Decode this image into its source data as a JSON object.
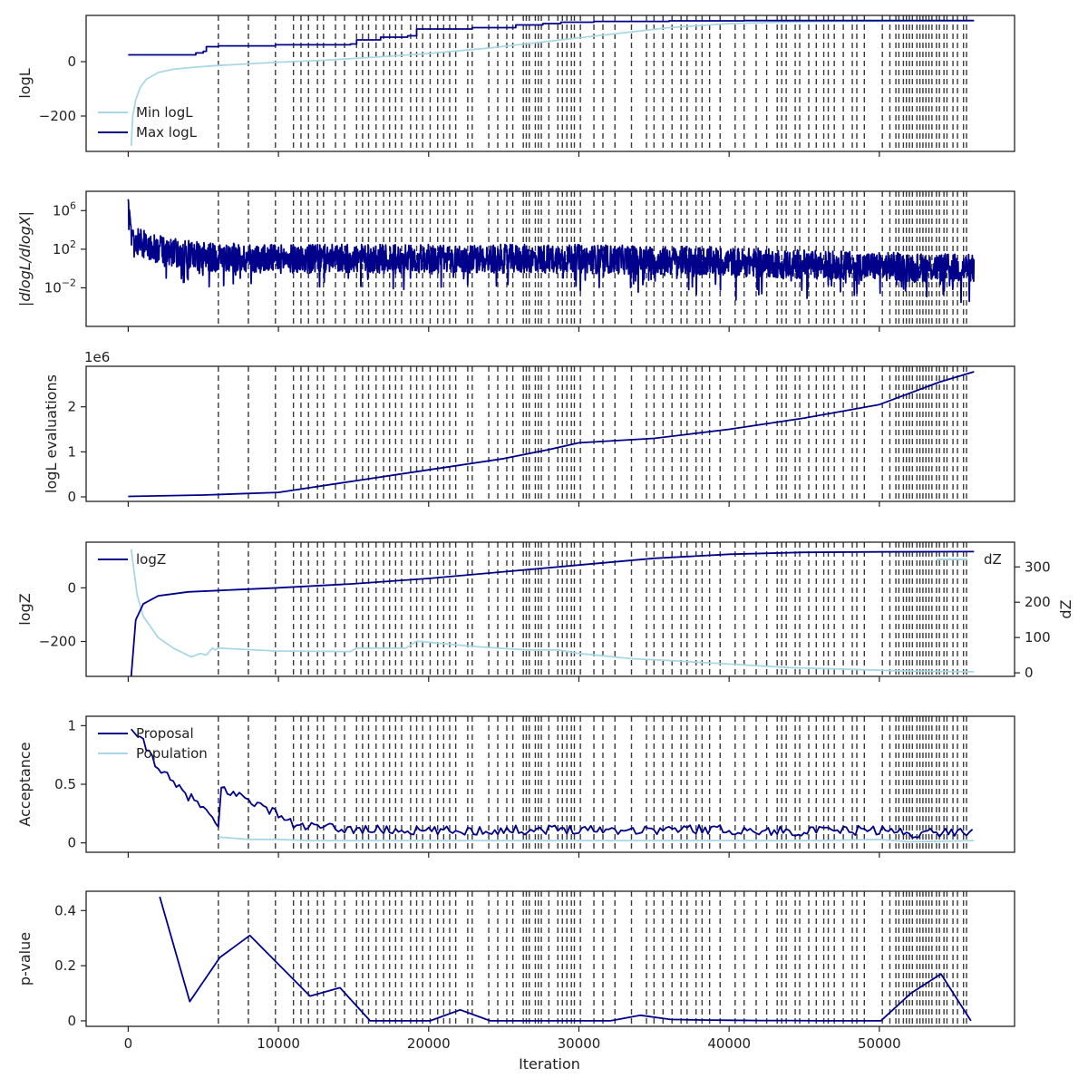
{
  "colors": {
    "navy": "#00008b",
    "light": "#a8d8e6",
    "axis": "#222222",
    "vline": "#3a3a3a"
  },
  "xaxis": {
    "label": "Iteration",
    "range": [
      -2800,
      59000
    ],
    "ticks": [
      0,
      10000,
      20000,
      30000,
      40000,
      50000
    ]
  },
  "chart_data": {
    "type": "line",
    "shared_vlines": [
      6000,
      8000,
      9800,
      11000,
      11500,
      12000,
      12600,
      13000,
      13800,
      14400,
      15200,
      15600,
      16000,
      16500,
      17000,
      17400,
      17800,
      18200,
      18800,
      19200,
      19600,
      20100,
      20600,
      21000,
      21400,
      21800,
      22600,
      22900,
      24000,
      24600,
      25200,
      25600,
      26300,
      26500,
      26700,
      27100,
      27300,
      27500,
      28000,
      28600,
      28900,
      29200,
      29500,
      29700,
      30100,
      31000,
      31600,
      32400,
      33500,
      34500,
      35000,
      35600,
      36200,
      36800,
      37200,
      37800,
      38200,
      38700,
      39400,
      40400,
      41000,
      41800,
      42500,
      43200,
      43500,
      43800,
      44400,
      44700,
      45300,
      45800,
      46300,
      46600,
      47000,
      47600,
      48200,
      48500,
      49000,
      50200,
      50700,
      51100,
      51300,
      51600,
      51800,
      52000,
      52200,
      52500,
      52700,
      52900,
      53100,
      53300,
      53500,
      53800,
      54000,
      54300,
      54500,
      54900,
      55200,
      55600,
      55800
    ],
    "panels": [
      {
        "id": "logl",
        "ylabel": "logL",
        "ylim": [
          -330,
          170
        ],
        "yticks": [
          0,
          -200
        ],
        "legend": "lower-left",
        "series": [
          {
            "name": "Min logL",
            "color": "#a8d8e6",
            "x": [
              200,
              300,
              500,
              800,
              1200,
              2000,
              3000,
              4500,
              6000,
              8000,
              10000,
              13000,
              16000,
              20000,
              24000,
              28000,
              32000,
              36000,
              40000,
              44000,
              48000,
              52000,
              56000
            ],
            "y": [
              -310,
              -200,
              -140,
              -95,
              -65,
              -40,
              -28,
              -20,
              -14,
              -8,
              -2,
              5,
              15,
              30,
              50,
              75,
              100,
              125,
              140,
              146,
              148,
              149,
              150
            ]
          },
          {
            "name": "Max logL",
            "color": "#00008b",
            "step": true,
            "x": [
              0,
              4200,
              4500,
              5000,
              5200,
              6000,
              9800,
              14800,
              15200,
              16800,
              18600,
              19200,
              22900,
              25800,
              27600,
              28800,
              31000,
              36000,
              41000,
              46000,
              56300
            ],
            "y": [
              25,
              25,
              32,
              38,
              55,
              58,
              62,
              65,
              80,
              90,
              95,
              120,
              125,
              135,
              140,
              145,
              148,
              150,
              151,
              151,
              151
            ]
          }
        ]
      },
      {
        "id": "dlogl",
        "ylabel": "|dlogL/dlogX|",
        "scale": "log",
        "ylim": [
          1e-06,
          100000000.0
        ],
        "yticks": [
          1000000,
          100,
          0.01
        ],
        "yticklabels": [
          "10^6",
          "10^2",
          "10^-2"
        ],
        "series": [
          {
            "name": "",
            "color": "#00008b",
            "noisy": true,
            "x": [
              0,
              100,
              200,
              600,
              1200,
              2500,
              5000,
              10000,
              20000,
              30000,
              40000,
              50000,
              56300
            ],
            "center_log10": [
              7,
              5.5,
              4,
              3,
              2.3,
              1.8,
              1.2,
              1.0,
              1.0,
              1.0,
              0.7,
              0.2,
              0
            ],
            "noise_log10": 1.5,
            "floor_log10": -4.8
          }
        ]
      },
      {
        "id": "evals",
        "ylabel": "logL evaluations",
        "offset_text": "1e6",
        "ylim": [
          -0.1,
          2.9
        ],
        "yticks": [
          0,
          1,
          2
        ],
        "series": [
          {
            "name": "",
            "color": "#00008b",
            "x": [
              0,
              5000,
              10000,
              15000,
              20000,
              25000,
              28000,
              30000,
              35000,
              40000,
              45000,
              50000,
              52000,
              54000,
              56300
            ],
            "y": [
              0.01,
              0.04,
              0.1,
              0.35,
              0.6,
              0.85,
              1.05,
              1.2,
              1.3,
              1.5,
              1.75,
              2.05,
              2.3,
              2.55,
              2.78
            ]
          }
        ]
      },
      {
        "id": "logz",
        "ylabel": "logZ",
        "ylim": [
          -330,
          170
        ],
        "yticks": [
          0,
          -200
        ],
        "legend": "upper-left",
        "series": [
          {
            "name": "logZ",
            "color": "#00008b",
            "x": [
              200,
              500,
              1000,
              2000,
              4000,
              6000,
              10000,
              15000,
              20000,
              25000,
              30000,
              35000,
              40000,
              45000,
              50000,
              56300
            ],
            "y": [
              -330,
              -120,
              -60,
              -30,
              -15,
              -10,
              0,
              15,
              35,
              60,
              85,
              110,
              125,
              132,
              134,
              135
            ]
          }
        ],
        "right_axis": {
          "ylabel": "dZ",
          "ylim": [
            -10,
            370
          ],
          "yticks": [
            0,
            100,
            200,
            300
          ],
          "legend": "upper-right",
          "series": [
            {
              "name": "dZ",
              "color": "#a8d8e6",
              "x": [
                200,
                600,
                1000,
                2000,
                3000,
                4200,
                4800,
                5200,
                5600,
                5800,
                6000,
                9800,
                14800,
                15200,
                18500,
                19200,
                22900,
                26500,
                28600,
                30000,
                33500,
                36000,
                40000,
                44000,
                48000,
                52000,
                56300
              ],
              "y": [
                350,
                220,
                160,
                100,
                70,
                45,
                55,
                50,
                70,
                65,
                70,
                62,
                60,
                70,
                70,
                90,
                75,
                65,
                65,
                55,
                40,
                35,
                25,
                15,
                10,
                5,
                3
              ]
            }
          ]
        }
      },
      {
        "id": "acceptance",
        "ylabel": "Acceptance",
        "ylim": [
          -0.08,
          1.08
        ],
        "yticks": [
          0.0,
          0.5,
          1.0
        ],
        "legend": "upper-left",
        "series": [
          {
            "name": "Proposal",
            "color": "#00008b",
            "wiggle": 0.04,
            "x": [
              200,
              1000,
              2000,
              3000,
              4000,
              5000,
              5800,
              6000,
              6100,
              7000,
              8000,
              9000,
              10000,
              11000,
              14000,
              20000,
              26000,
              30000,
              34000,
              38000,
              42000,
              46000,
              50000,
              52000,
              56300
            ],
            "y": [
              0.97,
              0.85,
              0.65,
              0.5,
              0.4,
              0.3,
              0.15,
              0.14,
              0.47,
              0.42,
              0.38,
              0.3,
              0.25,
              0.15,
              0.12,
              0.1,
              0.11,
              0.12,
              0.11,
              0.12,
              0.1,
              0.1,
              0.11,
              0.08,
              0.1
            ]
          },
          {
            "name": "Population",
            "color": "#a8d8e6",
            "x": [
              6000,
              8000,
              10000,
              12000,
              16000,
              22000,
              30000,
              40000,
              46000,
              50000,
              52000,
              56300
            ],
            "y": [
              0.05,
              0.03,
              0.03,
              0.02,
              0.02,
              0.02,
              0.02,
              0.02,
              0.02,
              0.03,
              0.01,
              0.02
            ]
          }
        ]
      },
      {
        "id": "pvalue",
        "ylabel": "p-value",
        "ylim": [
          -0.02,
          0.47
        ],
        "yticks": [
          0.0,
          0.2,
          0.4
        ],
        "series": [
          {
            "name": "",
            "color": "#00008b",
            "x": [
              2100,
              4100,
              6100,
              8100,
              10100,
              12100,
              14100,
              16100,
              18100,
              20100,
              22100,
              24100,
              26100,
              28100,
              30100,
              32100,
              34100,
              36100,
              38100,
              40100,
              42100,
              44100,
              46100,
              48100,
              50100,
              52100,
              54100,
              56100
            ],
            "y": [
              0.45,
              0.07,
              0.23,
              0.31,
              0.2,
              0.09,
              0.12,
              0.0,
              0.0,
              0.0,
              0.04,
              0.0,
              0.0,
              0.0,
              0.0,
              0.0,
              0.02,
              0.005,
              0.003,
              0.002,
              0.001,
              0.001,
              0.0,
              0.0,
              0.0,
              0.1,
              0.17,
              0.0
            ]
          }
        ]
      }
    ]
  }
}
